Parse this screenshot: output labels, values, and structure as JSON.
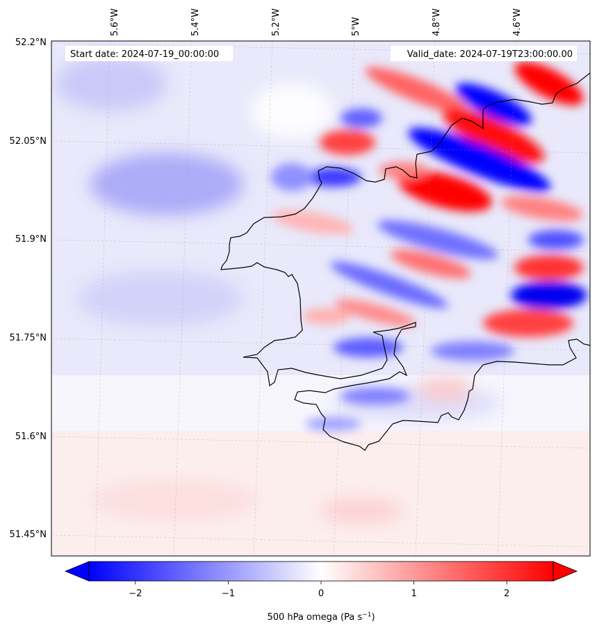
{
  "header": {
    "start_label": "Start date: 2024-07-19_00:00:00",
    "valid_label": "Valid_date: 2024-07-19T23:00:00.00"
  },
  "map": {
    "lon_labels": [
      "5.6°W",
      "5.4°W",
      "5.2°W",
      "5°W",
      "4.8°W",
      "4.6°W"
    ],
    "lat_labels": [
      "52.2°N",
      "52.05°N",
      "51.9°N",
      "51.75°N",
      "51.6°N",
      "51.45°N"
    ],
    "colors": {
      "negative": "#0000ff",
      "neutral": "#ffffff",
      "positive": "#ff0000",
      "coastline": "#000000"
    }
  },
  "colorbar": {
    "tick_labels": [
      "−2",
      "−1",
      "0",
      "1",
      "2"
    ],
    "tick_values": [
      -2,
      -1,
      0,
      1,
      2
    ],
    "range": [
      -2.5,
      2.5
    ],
    "label_main": "500 hPa omega (Pa s",
    "label_sup": "−1",
    "label_end": ")"
  }
}
